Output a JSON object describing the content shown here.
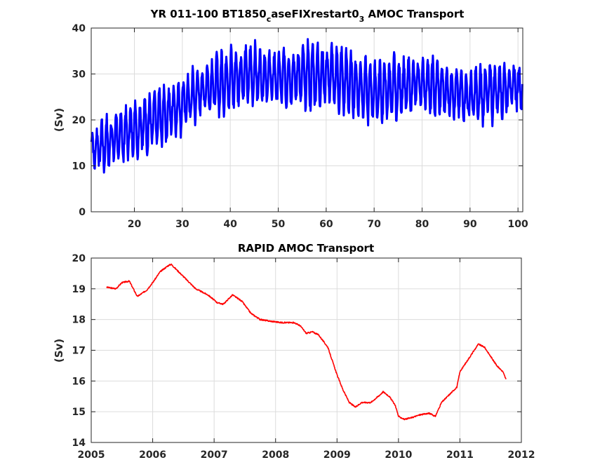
{
  "chart_data": [
    {
      "type": "line",
      "title_main": "YR 011-100 BT1850",
      "title_sub1": "c",
      "title_mid": "aseFIXrestart0",
      "title_sub2": "3",
      "title_end": " AMOC Transport",
      "ylabel": "(Sv)",
      "xlim": [
        11,
        101
      ],
      "ylim": [
        0,
        40
      ],
      "xticks": [
        20,
        30,
        40,
        50,
        60,
        70,
        80,
        90,
        100
      ],
      "yticks": [
        0,
        10,
        20,
        30,
        40
      ],
      "grid": true,
      "color": "#0000ff",
      "samples_per_year": 12,
      "series": [
        {
          "x": [
            11,
            15,
            20,
            25,
            30,
            35,
            40,
            45,
            50,
            55,
            60,
            65,
            70,
            75,
            80,
            85,
            90,
            95,
            100,
            101
          ],
          "mean": [
            13.5,
            15.5,
            18.0,
            20.5,
            23.5,
            27.0,
            29.0,
            30.0,
            29.0,
            29.5,
            30.0,
            28.0,
            26.0,
            27.0,
            28.0,
            26.5,
            25.0,
            26.5,
            27.5,
            27.0
          ],
          "amplitude": [
            4.0,
            5.0,
            5.5,
            5.0,
            5.0,
            5.5,
            5.5,
            6.0,
            5.5,
            6.0,
            6.0,
            6.0,
            6.0,
            6.0,
            5.5,
            5.0,
            5.0,
            5.5,
            5.5,
            5.0
          ],
          "y_min": 6.0,
          "y_max": 39.5
        }
      ]
    },
    {
      "type": "line",
      "title": "RAPID AMOC Transport",
      "ylabel": "(Sv)",
      "xlim": [
        2005,
        2012
      ],
      "ylim": [
        14,
        20
      ],
      "xticks": [
        2005,
        2006,
        2007,
        2008,
        2009,
        2010,
        2011,
        2012
      ],
      "yticks": [
        14,
        15,
        16,
        17,
        18,
        19,
        20
      ],
      "grid": true,
      "color": "#ff0000",
      "series": [
        {
          "x": [
            2005.25,
            2005.4,
            2005.5,
            2005.62,
            2005.75,
            2005.9,
            2006.0,
            2006.12,
            2006.25,
            2006.3,
            2006.4,
            2006.55,
            2006.7,
            2006.9,
            2007.05,
            2007.15,
            2007.3,
            2007.45,
            2007.6,
            2007.75,
            2007.9,
            2008.1,
            2008.3,
            2008.4,
            2008.5,
            2008.6,
            2008.7,
            2008.85,
            2009.0,
            2009.1,
            2009.2,
            2009.3,
            2009.4,
            2009.55,
            2009.7,
            2009.75,
            2009.85,
            2009.95,
            2010.0,
            2010.1,
            2010.2,
            2010.35,
            2010.5,
            2010.6,
            2010.7,
            2010.8,
            2010.95,
            2011.0,
            2011.1,
            2011.2,
            2011.3,
            2011.4,
            2011.5,
            2011.6,
            2011.7,
            2011.75
          ],
          "y": [
            19.05,
            19.0,
            19.2,
            19.25,
            18.75,
            18.95,
            19.2,
            19.55,
            19.75,
            19.8,
            19.6,
            19.3,
            19.0,
            18.8,
            18.55,
            18.5,
            18.8,
            18.6,
            18.2,
            18.0,
            17.95,
            17.9,
            17.9,
            17.8,
            17.55,
            17.6,
            17.5,
            17.1,
            16.2,
            15.7,
            15.3,
            15.15,
            15.3,
            15.3,
            15.55,
            15.65,
            15.5,
            15.2,
            14.85,
            14.75,
            14.8,
            14.9,
            14.95,
            14.85,
            15.3,
            15.5,
            15.8,
            16.3,
            16.6,
            16.9,
            17.2,
            17.1,
            16.8,
            16.5,
            16.3,
            16.05
          ]
        }
      ]
    }
  ]
}
